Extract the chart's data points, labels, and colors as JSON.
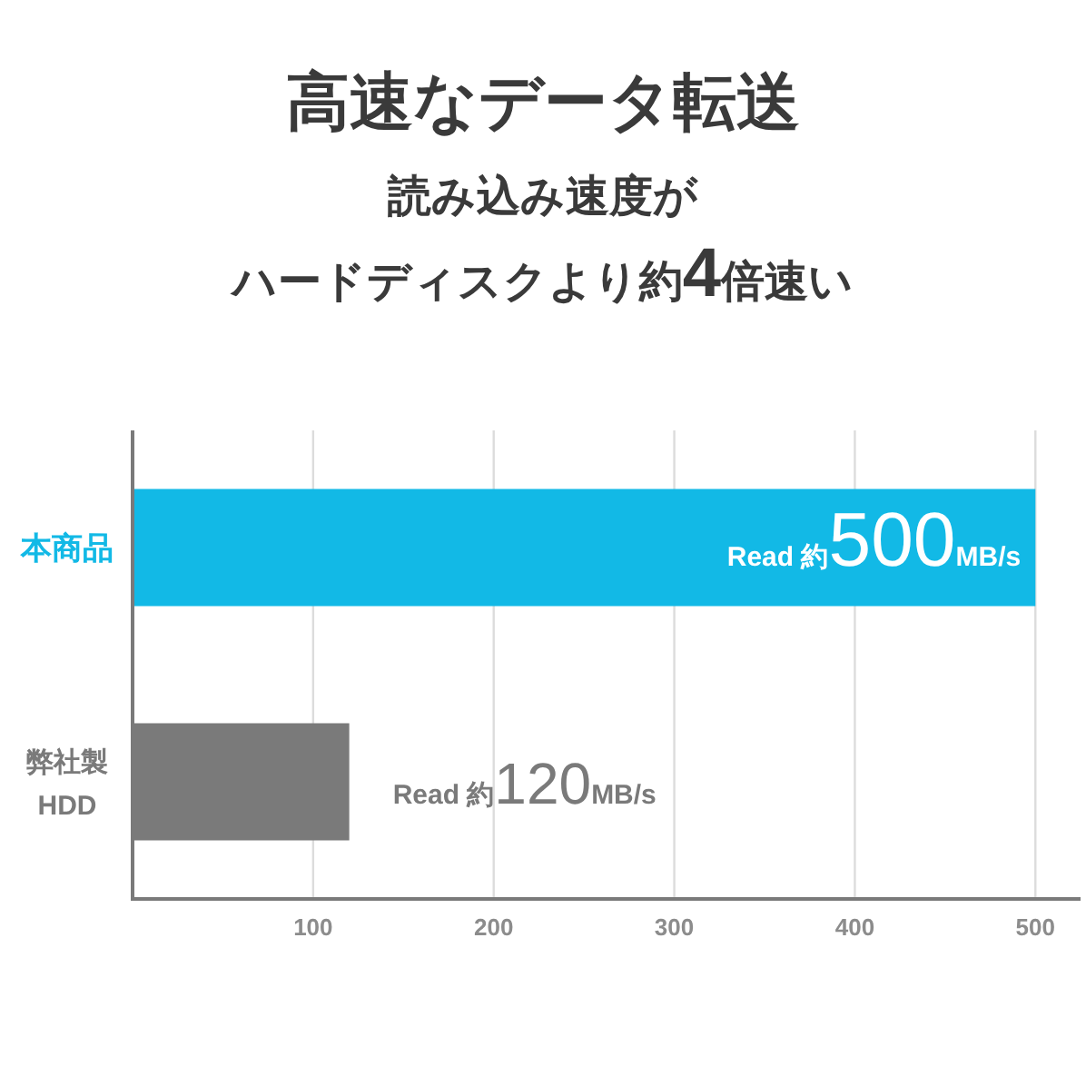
{
  "chart_data": {
    "type": "bar",
    "orientation": "horizontal",
    "title": "高速なデータ転送",
    "subtitle": "読み込み速度がハードディスクより約**4**倍速い",
    "categories": [
      "本商品",
      "弊社製 HDD"
    ],
    "values": [
      500,
      120
    ],
    "colors": [
      "#12b9e6",
      "#7a7a7a"
    ],
    "value_labels": [
      "Read 約500MB/s",
      "Read 約120MB/s"
    ],
    "xlim": [
      0,
      525
    ],
    "xticks": [
      100,
      200,
      300,
      400,
      500
    ],
    "grid": "x"
  }
}
